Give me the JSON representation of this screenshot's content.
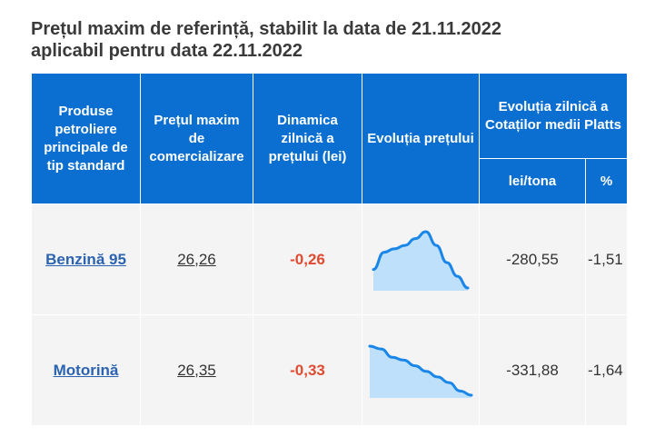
{
  "title": {
    "line1": "Prețul maxim de referință, stabilit la data de 21.11.2022",
    "line2": "aplicabil pentru data 22.11.2022"
  },
  "table": {
    "headers": {
      "product": "Produse petroliere principale de tip standard",
      "max_price": "Prețul maxim de comercializare",
      "dynamics": "Dinamica zilnică a prețului (lei)",
      "evolution": "Evoluția prețului",
      "platts": "Evoluția zilnică a Cotaților medii Platts",
      "lei_tona": "lei/tona",
      "percent": "%"
    },
    "rows": [
      {
        "product": "Benzină 95",
        "max_price": "26,26",
        "dynamics": "-0,26",
        "platts_lei": "-280,55",
        "platts_pct": "-1,51",
        "trend": [
          26.8,
          27.3,
          27.4,
          27.5,
          27.7,
          27.9,
          27.5,
          27.0,
          26.6,
          26.26
        ]
      },
      {
        "product": "Motorină",
        "max_price": "26,35",
        "dynamics": "-0,33",
        "platts_lei": "-331,88",
        "platts_pct": "-1,64",
        "trend": [
          28.1,
          28.0,
          27.7,
          27.6,
          27.4,
          27.2,
          27.0,
          26.8,
          26.5,
          26.35
        ]
      }
    ]
  },
  "colors": {
    "header_bg": "#0a6fd1",
    "link": "#2b63b1",
    "negative": "#e04b30",
    "spark_line": "#1a86e8",
    "spark_fill": "#bfe0fb"
  },
  "icons": {
    "trend": "sparkline-area-chart"
  }
}
